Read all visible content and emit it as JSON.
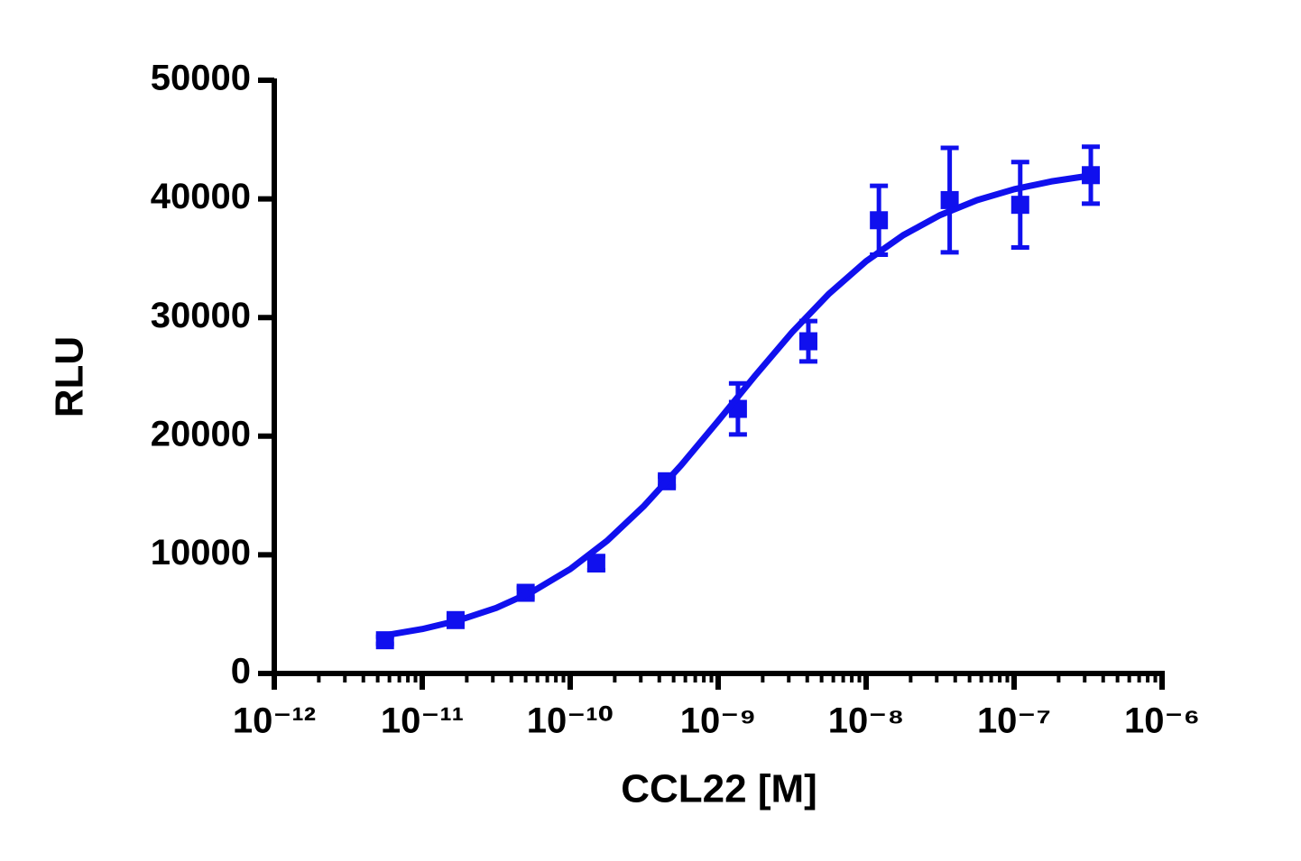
{
  "chart_data": {
    "type": "scatter",
    "x_label": "CCL22 [M]",
    "y_label": "RLU",
    "xscale": "log",
    "xlim": [
      1e-12,
      1e-06
    ],
    "xticks": [
      {
        "value": 1e-12,
        "label": "10⁻¹²"
      },
      {
        "value": 1e-11,
        "label": "10⁻¹¹"
      },
      {
        "value": 1e-10,
        "label": "10⁻¹⁰"
      },
      {
        "value": 1e-09,
        "label": "10⁻⁹"
      },
      {
        "value": 1e-08,
        "label": "10⁻⁸"
      },
      {
        "value": 1e-07,
        "label": "10⁻⁷"
      },
      {
        "value": 1e-06,
        "label": "10⁻⁶"
      }
    ],
    "ylim": [
      0,
      50000
    ],
    "yticks": [
      0,
      10000,
      20000,
      30000,
      40000,
      50000
    ],
    "series": [
      {
        "type": "scatter",
        "color": "#1010ee",
        "x": [
          5.6e-12,
          1.68e-11,
          5e-11,
          1.5e-10,
          4.5e-10,
          1.36e-09,
          4.07e-09,
          1.22e-08,
          3.67e-08,
          1.1e-07,
          3.3e-07
        ],
        "values": [
          2800,
          4500,
          6800,
          9300,
          16200,
          22300,
          28000,
          38200,
          39900,
          39500,
          42000
        ],
        "errors": [
          300,
          300,
          400,
          600,
          400,
          2150,
          1700,
          2900,
          4400,
          3600,
          2400
        ]
      },
      {
        "type": "line",
        "color": "#1010ee",
        "x": [
          5.62e-12,
          1e-11,
          1.78e-11,
          3.16e-11,
          5.62e-11,
          1e-10,
          1.78e-10,
          3.16e-10,
          5.62e-10,
          1e-09,
          1.78e-09,
          3.16e-09,
          5.62e-09,
          1e-08,
          1.78e-08,
          3.16e-08,
          5.62e-08,
          1e-07,
          1.78e-07,
          3.16e-07
        ],
        "values": [
          3218,
          3745,
          4494,
          5526,
          6933,
          8798,
          11192,
          14132,
          17553,
          21286,
          25112,
          28761,
          32012,
          34747,
          36940,
          38633,
          39892,
          40811,
          41469,
          41934
        ]
      }
    ]
  }
}
